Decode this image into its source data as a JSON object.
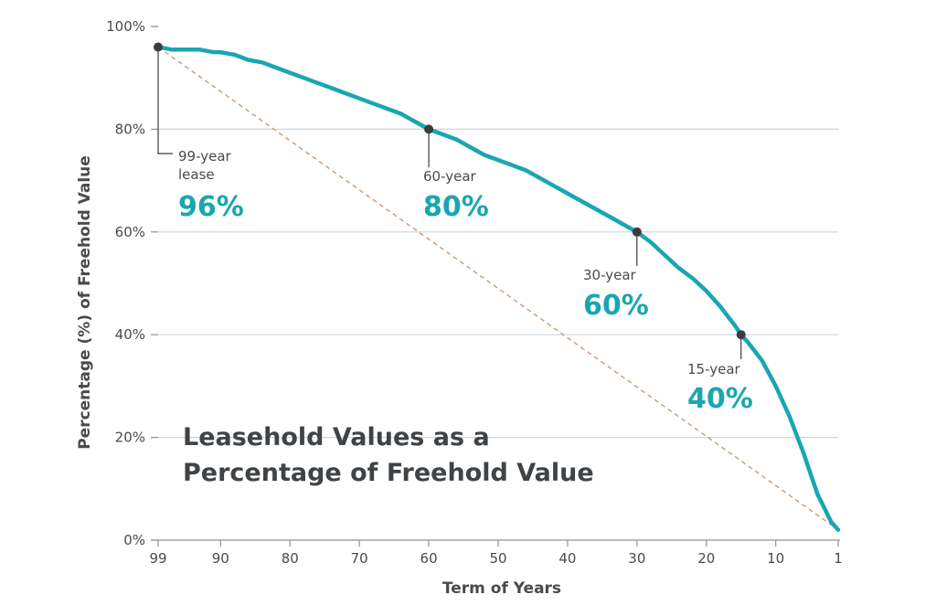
{
  "chart_data": {
    "type": "line",
    "title": "Leasehold Values as a Percentage of Freehold Value",
    "title_lines": [
      "Leasehold Values as a",
      "Percentage of Freehold Value"
    ],
    "xlabel": "Term of Years",
    "ylabel": "Percentage (%) of Freehold Value",
    "x_reversed": true,
    "xlim": [
      99,
      1
    ],
    "ylim": [
      0,
      100
    ],
    "x_ticks": [
      99,
      90,
      80,
      70,
      60,
      50,
      40,
      30,
      20,
      10,
      1
    ],
    "x_tick_labels": [
      "99",
      "90",
      "80",
      "70",
      "60",
      "50",
      "40",
      "30",
      "20",
      "10",
      "1"
    ],
    "y_ticks": [
      0,
      20,
      40,
      60,
      80,
      100
    ],
    "y_tick_labels": [
      "0%",
      "20%",
      "40%",
      "60%",
      "80%",
      "100%"
    ],
    "grid": "horizontal",
    "colors": {
      "curve": "#1aa6b0",
      "dashed": "#c99a78",
      "grid": "#cdd5dc",
      "marker": "#3a3d40",
      "value": "#1aa6b0"
    },
    "series": [
      {
        "x": [
          99,
          97,
          95,
          93,
          91,
          90,
          88,
          86,
          84,
          82,
          80,
          78,
          76,
          74,
          72,
          70,
          68,
          66,
          64,
          62,
          60,
          58,
          56,
          54,
          52,
          50,
          48,
          46,
          44,
          42,
          40,
          38,
          36,
          34,
          32,
          30,
          28,
          26,
          24,
          22,
          20,
          18,
          16,
          15,
          14,
          12,
          10,
          8,
          6,
          4,
          2,
          1
        ],
        "y": [
          96,
          95.5,
          95.5,
          95.5,
          95,
          95,
          94.5,
          93.5,
          93,
          92,
          91,
          90,
          89,
          88,
          87,
          86,
          85,
          84,
          83,
          81.5,
          80,
          79,
          78,
          76.5,
          75,
          74,
          73,
          72,
          70.5,
          69,
          67.5,
          66,
          64.5,
          63,
          61.5,
          60,
          58,
          55.5,
          53,
          51,
          48.5,
          45.5,
          42,
          40,
          38.5,
          35,
          30,
          24,
          17,
          9,
          3.5,
          2
        ]
      },
      {
        "style": "dashed",
        "x": [
          99,
          1
        ],
        "y": [
          96,
          2
        ]
      }
    ],
    "annotations": [
      {
        "x": 99,
        "y": 96,
        "label_lines": [
          "99-year",
          "lease"
        ],
        "value": "96%"
      },
      {
        "x": 60,
        "y": 80,
        "label_lines": [
          "60-year"
        ],
        "value": "80%"
      },
      {
        "x": 30,
        "y": 60,
        "label_lines": [
          "30-year"
        ],
        "value": "60%"
      },
      {
        "x": 15,
        "y": 40,
        "label_lines": [
          "15-year"
        ],
        "value": "40%"
      }
    ]
  }
}
